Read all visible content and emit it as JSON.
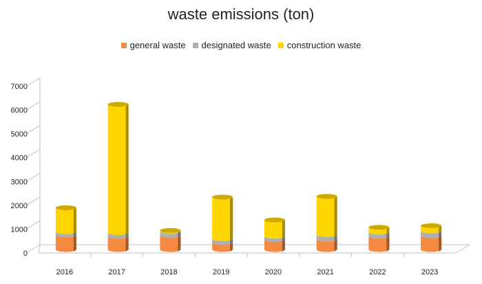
{
  "chart_data": {
    "type": "bar",
    "title": "waste emissions (ton)",
    "stacked": true,
    "style": "3d-cylinder",
    "categories": [
      "2016",
      "2017",
      "2018",
      "2019",
      "2020",
      "2021",
      "2022",
      "2023"
    ],
    "series": [
      {
        "name": "general waste",
        "color": "#F58A42",
        "values": [
          620,
          560,
          600,
          300,
          420,
          440,
          560,
          580
        ]
      },
      {
        "name": "designated waste",
        "color": "#AFAFAF",
        "values": [
          130,
          150,
          170,
          160,
          140,
          190,
          170,
          200
        ]
      },
      {
        "name": "construction waste",
        "color": "#FFD500",
        "values": [
          1000,
          5380,
          30,
          1740,
          680,
          1600,
          200,
          220
        ]
      }
    ],
    "ylim": [
      0,
      7000
    ],
    "yticks": [
      "0",
      "1000",
      "2000",
      "3000",
      "4000",
      "5000",
      "6000",
      "7000"
    ],
    "xlabel": "",
    "ylabel": "",
    "legend": "top",
    "grid": false
  }
}
